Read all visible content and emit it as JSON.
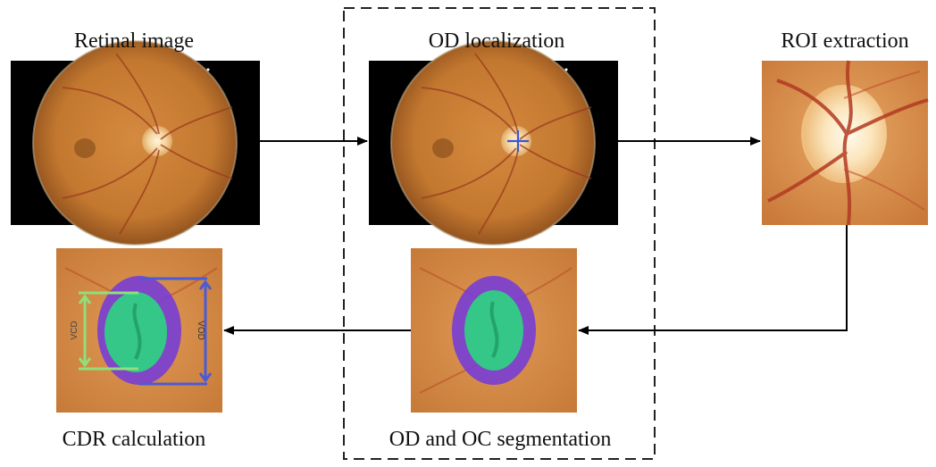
{
  "diagram": {
    "stages": {
      "retinal_image": "Retinal image",
      "od_localization": "OD localization",
      "roi_extraction": "ROI extraction",
      "od_oc_segmentation": "OD and OC segmentation",
      "cdr_calculation": "CDR calculation"
    },
    "annotations": {
      "vcd": "VCD",
      "vod": "VOD"
    },
    "colors": {
      "fundus_background": "#000000",
      "retina": "#c9803a",
      "optic_disc": "#f7d9a8",
      "od_segment": "#7a3fd1",
      "oc_segment": "#2fcf84",
      "vcd_marker": "#8fe07a",
      "vod_marker": "#4a5bd8",
      "arrow": "#000000"
    }
  }
}
